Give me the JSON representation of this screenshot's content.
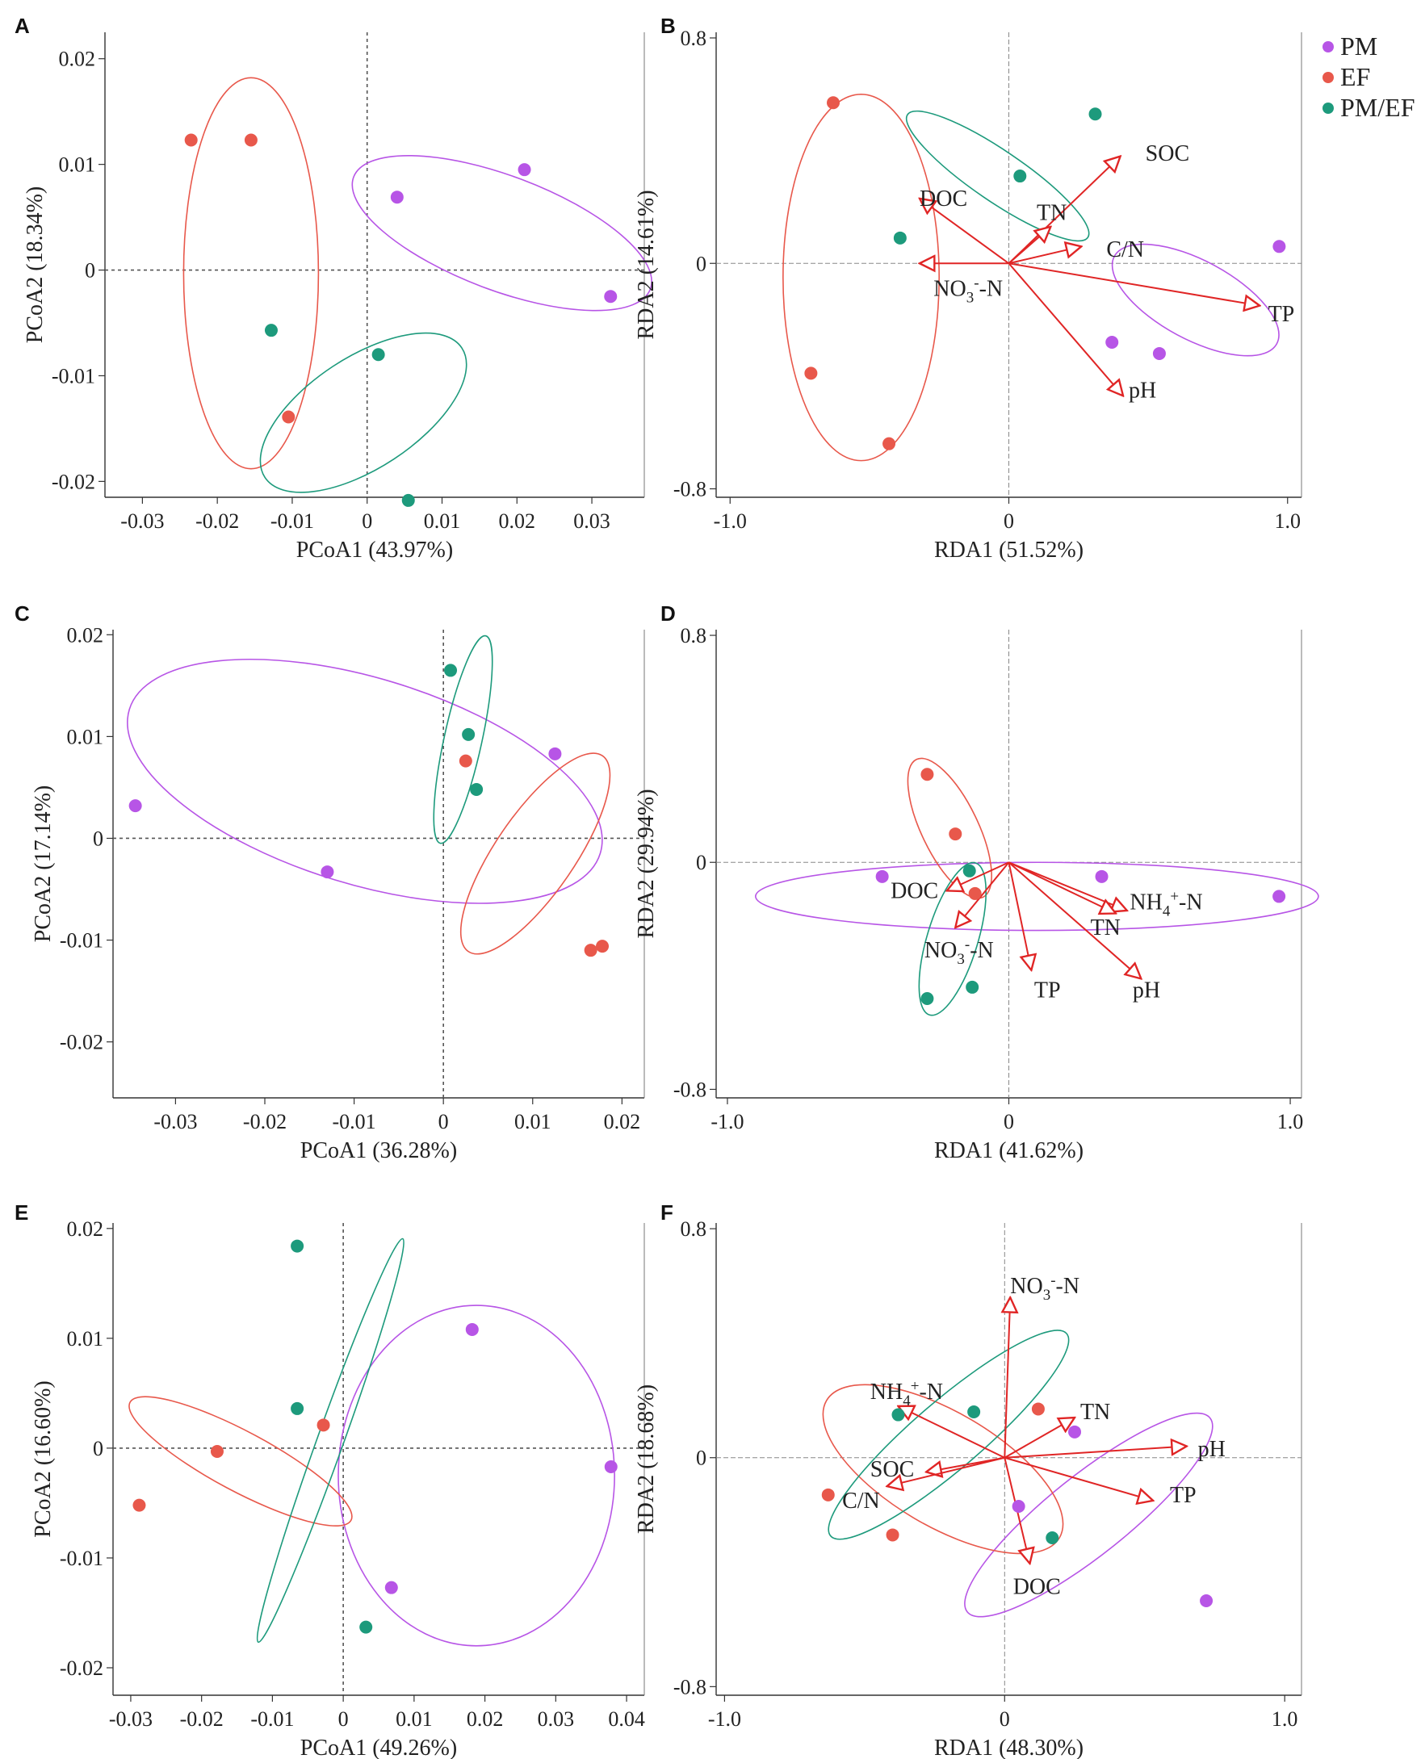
{
  "legend": [
    {
      "label": "PM",
      "color": "#b755e6"
    },
    {
      "label": "EF",
      "color": "#e8584b"
    },
    {
      "label": "PM/EF",
      "color": "#1d9a7c"
    }
  ],
  "arrow_color": "#e02525",
  "chart_data": [
    {
      "panel": "A",
      "type": "scatter",
      "xlabel": "PCoA1 (43.97%)",
      "ylabel": "PCoA2 (18.34%)",
      "xlim": [
        -0.035,
        0.037
      ],
      "ylim": [
        -0.0215,
        0.0225
      ],
      "xticks": [
        {
          "v": -0.03,
          "t": "-0.03"
        },
        {
          "v": -0.02,
          "t": "-0.02"
        },
        {
          "v": -0.01,
          "t": "-0.01"
        },
        {
          "v": 0,
          "t": "0"
        },
        {
          "v": 0.01,
          "t": "0.01"
        },
        {
          "v": 0.02,
          "t": "0.02"
        },
        {
          "v": 0.03,
          "t": "0.03"
        }
      ],
      "yticks": [
        {
          "v": -0.02,
          "t": "-0.02"
        },
        {
          "v": -0.01,
          "t": "-0.01"
        },
        {
          "v": 0,
          "t": "0"
        },
        {
          "v": 0.01,
          "t": "0.01"
        },
        {
          "v": 0.02,
          "t": "0.02"
        }
      ],
      "series": [
        {
          "name": "PM",
          "points": [
            [
              0.004,
              0.0069
            ],
            [
              0.021,
              0.0095
            ],
            [
              0.0325,
              -0.0025
            ]
          ],
          "ellipse": {
            "cx": 0.018,
            "cy": 0.0035,
            "rx": 0.0205,
            "ry": 0.0055,
            "angle": -15
          }
        },
        {
          "name": "EF",
          "points": [
            [
              -0.0235,
              0.0123
            ],
            [
              -0.0155,
              0.0123
            ],
            [
              -0.0105,
              -0.0139
            ]
          ],
          "ellipse": {
            "cx": -0.0155,
            "cy": -0.0003,
            "rx": 0.009,
            "ry": 0.0185,
            "angle": 0
          }
        },
        {
          "name": "PM/EF",
          "points": [
            [
              -0.0128,
              -0.0057
            ],
            [
              0.0015,
              -0.008
            ],
            [
              0.0055,
              -0.0218
            ]
          ],
          "ellipse": {
            "cx": -0.0005,
            "cy": -0.0135,
            "rx": 0.0145,
            "ry": 0.0055,
            "angle": 25
          }
        }
      ]
    },
    {
      "panel": "B",
      "type": "scatter",
      "xlabel": "RDA1 (51.52%)",
      "ylabel": "RDA2 (14.61%)",
      "xlim": [
        -1.05,
        1.05
      ],
      "ylim": [
        -0.83,
        0.82
      ],
      "xticks": [
        {
          "v": -1.0,
          "t": "-1.0"
        },
        {
          "v": 0,
          "t": "0"
        },
        {
          "v": 1.0,
          "t": "1.0"
        }
      ],
      "yticks": [
        {
          "v": -0.8,
          "t": "-0.8"
        },
        {
          "v": 0,
          "t": "0"
        },
        {
          "v": 0.8,
          "t": "0.8"
        }
      ],
      "series": [
        {
          "name": "PM",
          "points": [
            [
              0.37,
              -0.28
            ],
            [
              0.54,
              -0.32
            ],
            [
              0.97,
              0.06
            ]
          ],
          "ellipse": {
            "cx": 0.67,
            "cy": -0.13,
            "rx": 0.33,
            "ry": 0.14,
            "angle": -28
          }
        },
        {
          "name": "EF",
          "points": [
            [
              -0.63,
              0.57
            ],
            [
              -0.71,
              -0.39
            ],
            [
              -0.43,
              -0.64
            ]
          ],
          "ellipse": {
            "cx": -0.53,
            "cy": -0.05,
            "rx": 0.28,
            "ry": 0.65,
            "angle": 0
          }
        },
        {
          "name": "PM/EF",
          "points": [
            [
              -0.39,
              0.09
            ],
            [
              0.04,
              0.31
            ],
            [
              0.31,
              0.53
            ]
          ],
          "ellipse": {
            "cx": -0.04,
            "cy": 0.31,
            "rx": 0.39,
            "ry": 0.09,
            "angle": -34
          }
        }
      ],
      "vectors": [
        {
          "label": "SOC",
          "x": 0.4,
          "y": 0.38,
          "lx": 0.49,
          "ly": 0.39
        },
        {
          "label": "DOC",
          "x": -0.32,
          "y": 0.23,
          "lx": -0.32,
          "ly": 0.23
        },
        {
          "label": "TN",
          "x": 0.15,
          "y": 0.13,
          "lx": 0.1,
          "ly": 0.18
        },
        {
          "label": "C/N",
          "x": 0.26,
          "y": 0.06,
          "lx": 0.35,
          "ly": 0.05
        },
        {
          "label": "NO3-N",
          "x": -0.32,
          "y": 0.0,
          "lx": -0.27,
          "ly": -0.09
        },
        {
          "label": "TP",
          "x": 0.9,
          "y": -0.15,
          "lx": 0.93,
          "ly": -0.18
        },
        {
          "label": "pH",
          "x": 0.41,
          "y": -0.47,
          "lx": 0.43,
          "ly": -0.45
        }
      ]
    },
    {
      "panel": "C",
      "type": "scatter",
      "xlabel": "PCoA1 (36.28%)",
      "ylabel": "PCoA2 (17.14%)",
      "xlim": [
        -0.037,
        0.0225
      ],
      "ylim": [
        -0.0255,
        0.0205
      ],
      "xticks": [
        {
          "v": -0.03,
          "t": "-0.03"
        },
        {
          "v": -0.02,
          "t": "-0.02"
        },
        {
          "v": -0.01,
          "t": "-0.01"
        },
        {
          "v": 0,
          "t": "0"
        },
        {
          "v": 0.01,
          "t": "0.01"
        },
        {
          "v": 0.02,
          "t": "0.02"
        }
      ],
      "yticks": [
        {
          "v": -0.02,
          "t": "-0.02"
        },
        {
          "v": -0.01,
          "t": "-0.01"
        },
        {
          "v": 0,
          "t": "0"
        },
        {
          "v": 0.01,
          "t": "0.01"
        },
        {
          "v": 0.02,
          "t": "0.02"
        }
      ],
      "series": [
        {
          "name": "PM",
          "points": [
            [
              -0.0345,
              0.0032
            ],
            [
              -0.013,
              -0.0033
            ],
            [
              0.0125,
              0.0083
            ]
          ],
          "ellipse": {
            "cx": -0.0088,
            "cy": 0.0056,
            "rx": 0.0273,
            "ry": 0.0102,
            "angle": -15
          }
        },
        {
          "name": "EF",
          "points": [
            [
              0.0025,
              0.0076
            ],
            [
              0.0165,
              -0.011
            ],
            [
              0.0178,
              -0.0106
            ]
          ],
          "ellipse": {
            "cx": 0.0103,
            "cy": -0.0015,
            "rx": 0.0122,
            "ry": 0.0042,
            "angle": 52
          }
        },
        {
          "name": "PM/EF",
          "points": [
            [
              0.0008,
              0.0165
            ],
            [
              0.0028,
              0.0102
            ],
            [
              0.0037,
              0.0048
            ]
          ],
          "ellipse": {
            "cx": 0.0022,
            "cy": 0.0097,
            "rx": 0.0105,
            "ry": 0.0021,
            "angle": 76
          }
        }
      ]
    },
    {
      "panel": "D",
      "type": "scatter",
      "xlabel": "RDA1 (41.62%)",
      "ylabel": "RDA2 (29.94%)",
      "xlim": [
        -1.04,
        1.04
      ],
      "ylim": [
        -0.83,
        0.82
      ],
      "xticks": [
        {
          "v": -1.0,
          "t": "-1.0"
        },
        {
          "v": 0,
          "t": "0"
        },
        {
          "v": 1.0,
          "t": "1.0"
        }
      ],
      "yticks": [
        {
          "v": -0.8,
          "t": "-0.8"
        },
        {
          "v": 0,
          "t": "0"
        },
        {
          "v": 0.8,
          "t": "0.8"
        }
      ],
      "series": [
        {
          "name": "PM",
          "points": [
            [
              -0.45,
              -0.05
            ],
            [
              0.33,
              -0.05
            ],
            [
              0.96,
              -0.12
            ]
          ],
          "ellipse": {
            "cx": 0.1,
            "cy": -0.12,
            "rx": 1.0,
            "ry": 0.12,
            "angle": 0
          }
        },
        {
          "name": "EF",
          "points": [
            [
              -0.29,
              0.31
            ],
            [
              -0.19,
              0.1
            ],
            [
              -0.12,
              -0.11
            ]
          ],
          "ellipse": {
            "cx": -0.21,
            "cy": 0.12,
            "rx": 0.27,
            "ry": 0.1,
            "angle": -64
          }
        },
        {
          "name": "PM/EF",
          "points": [
            [
              -0.14,
              -0.03
            ],
            [
              -0.29,
              -0.48
            ],
            [
              -0.13,
              -0.44
            ]
          ],
          "ellipse": {
            "cx": -0.2,
            "cy": -0.27,
            "rx": 0.28,
            "ry": 0.09,
            "angle": 73
          }
        }
      ],
      "vectors": [
        {
          "label": "NH4+-N",
          "x": 0.42,
          "y": -0.17,
          "lx": 0.43,
          "ly": -0.14
        },
        {
          "label": "TN",
          "x": 0.38,
          "y": -0.18,
          "lx": 0.29,
          "ly": -0.23
        },
        {
          "label": "pH",
          "x": 0.47,
          "y": -0.41,
          "lx": 0.44,
          "ly": -0.45
        },
        {
          "label": "TP",
          "x": 0.08,
          "y": -0.38,
          "lx": 0.09,
          "ly": -0.45
        },
        {
          "label": "DOC",
          "x": -0.22,
          "y": -0.1,
          "lx": -0.42,
          "ly": -0.1
        },
        {
          "label": "NO3-N",
          "x": -0.19,
          "y": -0.23,
          "lx": -0.3,
          "ly": -0.31
        }
      ]
    },
    {
      "panel": "E",
      "type": "scatter",
      "xlabel": "PCoA1 (49.26%)",
      "ylabel": "PCoA2 (16.60%)",
      "xlim": [
        -0.0325,
        0.0425
      ],
      "ylim": [
        -0.0225,
        0.0205
      ],
      "xticks": [
        {
          "v": -0.03,
          "t": "-0.03"
        },
        {
          "v": -0.02,
          "t": "-0.02"
        },
        {
          "v": -0.01,
          "t": "-0.01"
        },
        {
          "v": 0,
          "t": "0"
        },
        {
          "v": 0.01,
          "t": "0.01"
        },
        {
          "v": 0.02,
          "t": "0.02"
        },
        {
          "v": 0.03,
          "t": "0.03"
        },
        {
          "v": 0.04,
          "t": "0.04"
        }
      ],
      "yticks": [
        {
          "v": -0.02,
          "t": "-0.02"
        },
        {
          "v": -0.01,
          "t": "-0.01"
        },
        {
          "v": 0,
          "t": "0"
        },
        {
          "v": 0.01,
          "t": "0.01"
        },
        {
          "v": 0.02,
          "t": "0.02"
        }
      ],
      "series": [
        {
          "name": "PM",
          "points": [
            [
              0.0182,
              0.0108
            ],
            [
              0.0378,
              -0.0017
            ],
            [
              0.0068,
              -0.0127
            ]
          ],
          "ellipse": {
            "cx": 0.0188,
            "cy": -0.0025,
            "rx": 0.0195,
            "ry": 0.0155,
            "angle": 0
          }
        },
        {
          "name": "EF",
          "points": [
            [
              -0.0288,
              -0.0052
            ],
            [
              -0.0178,
              -0.0003
            ],
            [
              -0.0028,
              0.0021
            ]
          ],
          "ellipse": {
            "cx": -0.0145,
            "cy": -0.0012,
            "rx": 0.0165,
            "ry": 0.0028,
            "angle": -19
          }
        },
        {
          "name": "PM/EF",
          "points": [
            [
              -0.0065,
              0.0184
            ],
            [
              -0.0065,
              0.0036
            ],
            [
              0.0032,
              -0.0163
            ]
          ],
          "ellipse": {
            "cx": -0.0018,
            "cy": 0.0007,
            "rx": 0.0018,
            "ry": 0.0198,
            "angle": -13
          }
        }
      ]
    },
    {
      "panel": "F",
      "type": "scatter",
      "xlabel": "RDA1 (48.30%)",
      "ylabel": "RDA2 (18.68%)",
      "xlim": [
        -1.03,
        1.06
      ],
      "ylim": [
        -0.83,
        0.82
      ],
      "xticks": [
        {
          "v": -1.0,
          "t": "-1.0"
        },
        {
          "v": 0,
          "t": "0"
        },
        {
          "v": 1.0,
          "t": "1.0"
        }
      ],
      "yticks": [
        {
          "v": -0.8,
          "t": "-0.8"
        },
        {
          "v": 0,
          "t": "0"
        },
        {
          "v": 0.8,
          "t": "0.8"
        }
      ],
      "series": [
        {
          "name": "PM",
          "points": [
            [
              0.25,
              0.09
            ],
            [
              0.05,
              -0.17
            ],
            [
              0.72,
              -0.5
            ]
          ],
          "ellipse": {
            "cx": 0.3,
            "cy": -0.2,
            "rx": 0.55,
            "ry": 0.14,
            "angle": 38
          }
        },
        {
          "name": "EF",
          "points": [
            [
              0.12,
              0.17
            ],
            [
              -0.63,
              -0.13
            ],
            [
              -0.4,
              -0.27
            ]
          ],
          "ellipse": {
            "cx": -0.22,
            "cy": -0.04,
            "rx": 0.48,
            "ry": 0.2,
            "angle": -30
          }
        },
        {
          "name": "PM/EF",
          "points": [
            [
              -0.38,
              0.15
            ],
            [
              -0.11,
              0.16
            ],
            [
              0.17,
              -0.28
            ]
          ],
          "ellipse": {
            "cx": -0.2,
            "cy": 0.08,
            "rx": 0.55,
            "ry": 0.12,
            "angle": 40
          }
        }
      ],
      "vectors": [
        {
          "label": "NO3-N",
          "x": 0.02,
          "y": 0.56,
          "lx": 0.02,
          "ly": 0.6
        },
        {
          "label": "NH4+-N",
          "x": -0.38,
          "y": 0.18,
          "lx": -0.48,
          "ly": 0.23
        },
        {
          "label": "TN",
          "x": 0.25,
          "y": 0.14,
          "lx": 0.27,
          "ly": 0.16
        },
        {
          "label": "pH",
          "x": 0.65,
          "y": 0.04,
          "lx": 0.69,
          "ly": 0.03
        },
        {
          "label": "TP",
          "x": 0.53,
          "y": -0.15,
          "lx": 0.59,
          "ly": -0.13
        },
        {
          "label": "SOC",
          "x": -0.28,
          "y": -0.05,
          "lx": -0.48,
          "ly": -0.04
        },
        {
          "label": "C/N",
          "x": -0.42,
          "y": -0.1,
          "lx": -0.58,
          "ly": -0.15
        },
        {
          "label": "DOC",
          "x": 0.09,
          "y": -0.37,
          "lx": 0.03,
          "ly": -0.45
        }
      ]
    }
  ]
}
